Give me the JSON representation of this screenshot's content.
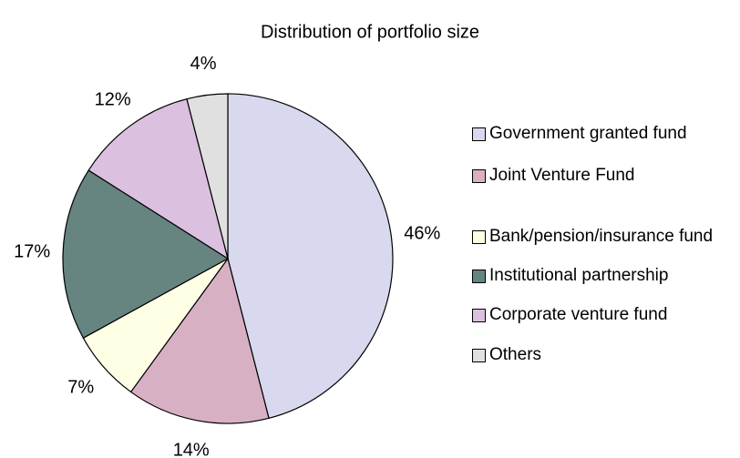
{
  "chart_data": {
    "type": "pie",
    "title": "Distribution of portfolio size",
    "categories": [
      "Government granted fund",
      "Joint Venture Fund",
      "Bank/pension/insurance fund",
      "Institutional partnership",
      "Corporate venture fund",
      "Others"
    ],
    "values": [
      46,
      14,
      7,
      17,
      12,
      4
    ],
    "value_labels": [
      "46%",
      "14%",
      "7%",
      "17%",
      "12%",
      "4%"
    ],
    "colors": [
      "#d8d8ee",
      "#d8b0c4",
      "#ffffe6",
      "#668480",
      "#dcc0e0",
      "#e0e0e0"
    ],
    "legend": "right"
  }
}
